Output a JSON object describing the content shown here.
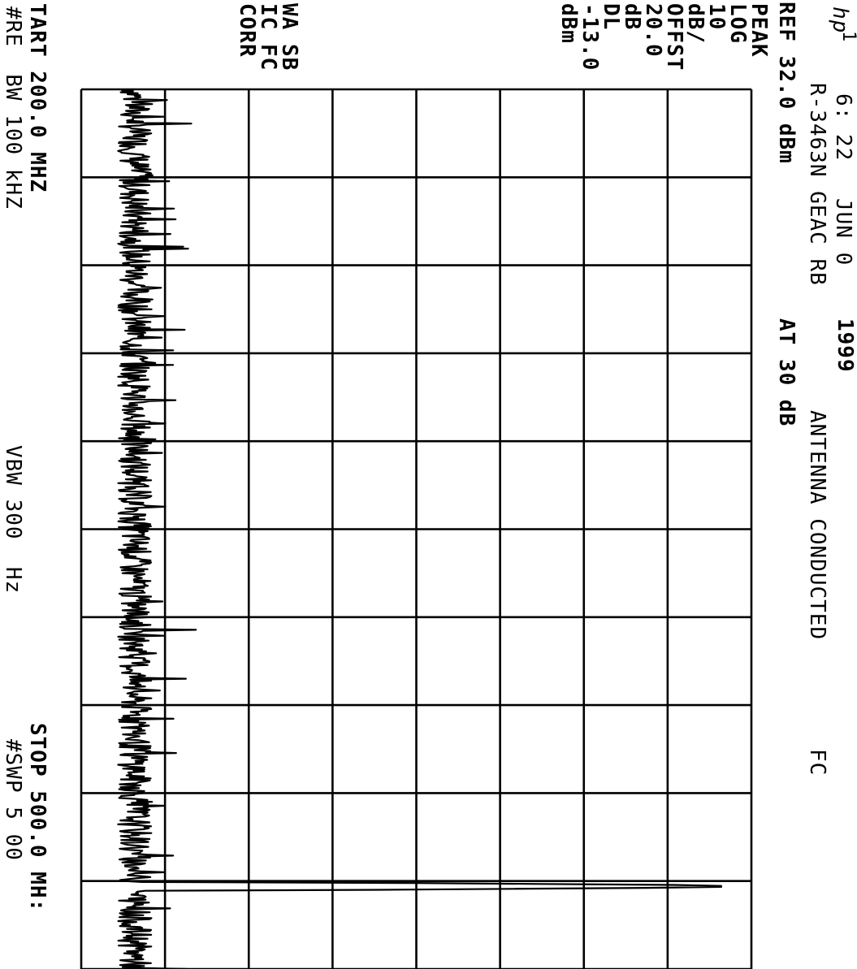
{
  "header": {
    "logo_text": "hp",
    "marker_number": "1",
    "time": "6: 22",
    "date": "JUN 0",
    "year": "1999",
    "model_line": "R-3463N GEAC RB",
    "title": "ANTENNA CONDUCTED",
    "title_suffix": "FC",
    "ref_level": "REF 32.0 dBm",
    "attenuation": "AT 30 dB"
  },
  "left_panel": {
    "lines": [
      "PEAK",
      "LOG",
      "10",
      "dB/",
      "OFFST",
      "20.0",
      "dB",
      "DL",
      "-13.0",
      "dBm"
    ],
    "lines_lower": [
      "WA SB",
      "IC FC",
      "CORR"
    ]
  },
  "footer": {
    "start": "TART 200.0 MHZ",
    "stop": "STOP 500.0 MH:",
    "rbw": "#RE  BW 100 kHZ",
    "vbw": "VBW 300  Hz",
    "sweep": "#SWP 5 00"
  },
  "chart_data": {
    "type": "line",
    "title": "ANTENNA CONDUCTED",
    "xlabel": "",
    "ylabel": "",
    "x_unit": "MHz",
    "y_unit": "dBm",
    "xlim": [
      200,
      500
    ],
    "ylim": [
      -68,
      32
    ],
    "grid": true,
    "display_line_dbm": -13.0,
    "trace": {
      "noise_floor_dbm": -60,
      "spike": {
        "x": 471.8,
        "y": 27.5
      },
      "description": "noise floor across span with single carrier spike near 472 MHz"
    }
  }
}
